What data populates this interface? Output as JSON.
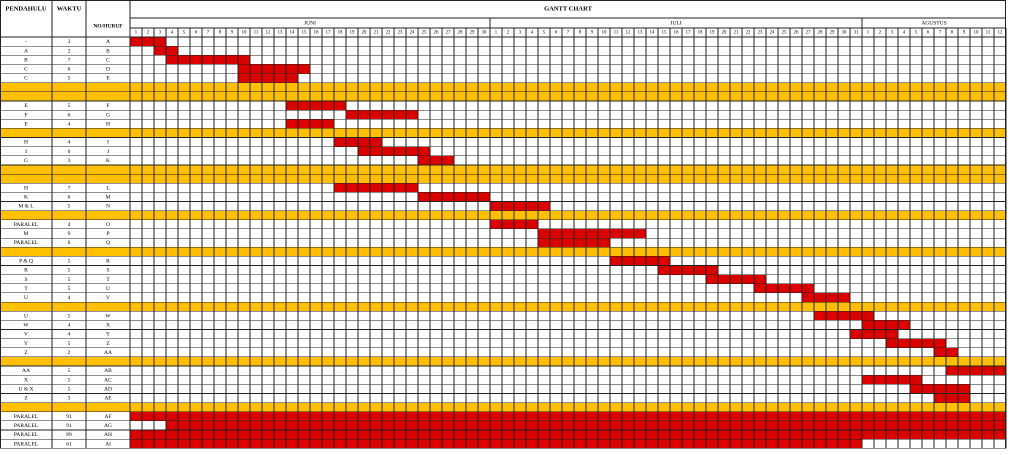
{
  "header": {
    "predecessor_label": "PENDAHULU",
    "duration_label": "WAKTU",
    "task_label": "NO/HURUF",
    "chart_title": "GANTT CHART"
  },
  "months": [
    {
      "name": "JUNI",
      "days": 30
    },
    {
      "name": "JULI",
      "days": 31
    },
    {
      "name": "AGUSTUS",
      "days": 12
    }
  ],
  "colors": {
    "bar": "#dd0000",
    "separator": "#ffc000",
    "grid": "#222222",
    "bar_grid": "#000000"
  },
  "chart_data": {
    "type": "gantt",
    "title": "GANTT CHART",
    "x_unit": "day",
    "x_range": [
      1,
      73
    ],
    "rows": [
      {
        "kind": "task",
        "pred": "-",
        "dur": "3",
        "code": "A",
        "start": 1,
        "end": 3
      },
      {
        "kind": "task",
        "pred": "A",
        "dur": "2",
        "code": "B",
        "start": 3,
        "end": 4
      },
      {
        "kind": "task",
        "pred": "B",
        "dur": "7",
        "code": "C",
        "start": 4,
        "end": 10
      },
      {
        "kind": "task",
        "pred": "C",
        "dur": "6",
        "code": "D",
        "start": 10,
        "end": 15
      },
      {
        "kind": "task",
        "pred": "C",
        "dur": "5",
        "code": "E",
        "start": 10,
        "end": 14
      },
      {
        "kind": "sep"
      },
      {
        "kind": "sep"
      },
      {
        "kind": "task",
        "pred": "E",
        "dur": "5",
        "code": "F",
        "start": 14,
        "end": 18
      },
      {
        "kind": "task",
        "pred": "F",
        "dur": "6",
        "code": "G",
        "start": 19,
        "end": 24
      },
      {
        "kind": "task",
        "pred": "E",
        "dur": "4",
        "code": "H",
        "start": 14,
        "end": 17
      },
      {
        "kind": "sep"
      },
      {
        "kind": "task",
        "pred": "H",
        "dur": "4",
        "code": "I",
        "start": 18,
        "end": 21
      },
      {
        "kind": "task",
        "pred": "I",
        "dur": "6",
        "code": "J",
        "start": 20,
        "end": 25
      },
      {
        "kind": "task",
        "pred": "G",
        "dur": "3",
        "code": "K",
        "start": 25,
        "end": 27
      },
      {
        "kind": "sep"
      },
      {
        "kind": "sep"
      },
      {
        "kind": "task",
        "pred": "H",
        "dur": "7",
        "code": "L",
        "start": 18,
        "end": 24
      },
      {
        "kind": "task",
        "pred": "K",
        "dur": "6",
        "code": "M",
        "start": 25,
        "end": 30
      },
      {
        "kind": "task",
        "pred": "M & L",
        "dur": "5",
        "code": "N",
        "start": 31,
        "end": 35
      },
      {
        "kind": "sep"
      },
      {
        "kind": "task",
        "pred": "PARALEL",
        "dur": "4",
        "code": "O",
        "start": 31,
        "end": 34
      },
      {
        "kind": "task",
        "pred": "M",
        "dur": "9",
        "code": "P",
        "start": 35,
        "end": 43
      },
      {
        "kind": "task",
        "pred": "PARALEL",
        "dur": "6",
        "code": "Q",
        "start": 35,
        "end": 40
      },
      {
        "kind": "sep"
      },
      {
        "kind": "task",
        "pred": "P & Q",
        "dur": "5",
        "code": "R",
        "start": 41,
        "end": 45
      },
      {
        "kind": "task",
        "pred": "R",
        "dur": "5",
        "code": "S",
        "start": 45,
        "end": 49
      },
      {
        "kind": "task",
        "pred": "S",
        "dur": "5",
        "code": "T",
        "start": 49,
        "end": 53
      },
      {
        "kind": "task",
        "pred": "T",
        "dur": "5",
        "code": "U",
        "start": 53,
        "end": 57
      },
      {
        "kind": "task",
        "pred": "U",
        "dur": "4",
        "code": "V",
        "start": 57,
        "end": 60
      },
      {
        "kind": "sep"
      },
      {
        "kind": "task",
        "pred": "U",
        "dur": "5",
        "code": "W",
        "start": 58,
        "end": 62
      },
      {
        "kind": "task",
        "pred": "W",
        "dur": "4",
        "code": "X",
        "start": 62,
        "end": 65
      },
      {
        "kind": "task",
        "pred": "V",
        "dur": "4",
        "code": "Y",
        "start": 61,
        "end": 64
      },
      {
        "kind": "task",
        "pred": "Y",
        "dur": "5",
        "code": "Z",
        "start": 64,
        "end": 68
      },
      {
        "kind": "task",
        "pred": "Z",
        "dur": "2",
        "code": "AA",
        "start": 68,
        "end": 69
      },
      {
        "kind": "sep"
      },
      {
        "kind": "task",
        "pred": "AA",
        "dur": "5",
        "code": "AB",
        "start": 69,
        "end": 73
      },
      {
        "kind": "task",
        "pred": "X",
        "dur": "5",
        "code": "AC",
        "start": 62,
        "end": 66
      },
      {
        "kind": "task",
        "pred": "U & X",
        "dur": "5",
        "code": "AD",
        "start": 66,
        "end": 70
      },
      {
        "kind": "task",
        "pred": "Z",
        "dur": "3",
        "code": "AE",
        "start": 68,
        "end": 70
      },
      {
        "kind": "sep"
      },
      {
        "kind": "task",
        "pred": "PARALEL",
        "dur": "91",
        "code": "AF",
        "start": 1,
        "end": 73
      },
      {
        "kind": "task",
        "pred": "PARALEL",
        "dur": "91",
        "code": "AG",
        "start": 4,
        "end": 73
      },
      {
        "kind": "task",
        "pred": "PARALEL",
        "dur": "89",
        "code": "AH",
        "start": 1,
        "end": 73
      },
      {
        "kind": "task",
        "pred": "PARALEL",
        "dur": "61",
        "code": "AI",
        "start": 1,
        "end": 61
      }
    ]
  }
}
